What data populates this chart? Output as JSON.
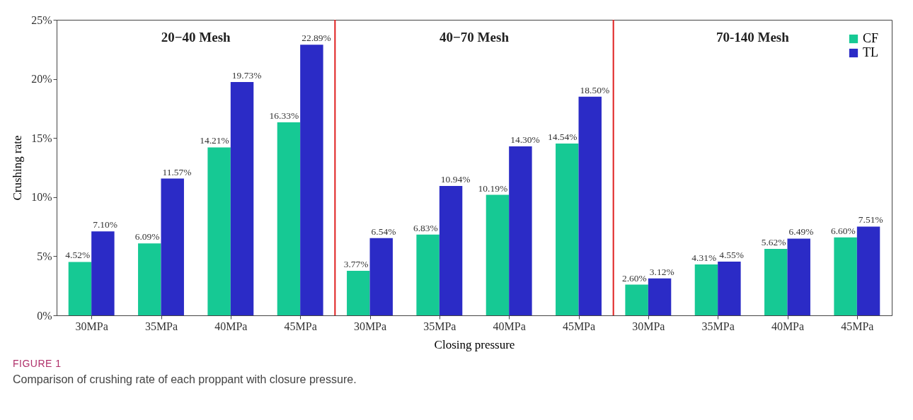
{
  "chart_data": {
    "type": "bar",
    "xlabel": "Closing pressure",
    "ylabel": "Crushing rate",
    "categories": [
      "30MPa",
      "35MPa",
      "40MPa",
      "45MPa",
      "30MPa",
      "35MPa",
      "40MPa",
      "45MPa",
      "30MPa",
      "35MPa",
      "40MPa",
      "45MPa"
    ],
    "series": [
      {
        "name": "CF",
        "color": "#16c994",
        "values": [
          4.52,
          6.09,
          14.21,
          16.33,
          3.77,
          6.83,
          10.19,
          14.54,
          2.6,
          4.31,
          5.62,
          6.6
        ],
        "value_labels": [
          "4.52%",
          "6.09%",
          "14.21%",
          "16.33%",
          "3.77%",
          "6.83%",
          "10.19%",
          "14.54%",
          "2.60%",
          "4.31%",
          "5.62%",
          "6.60%"
        ]
      },
      {
        "name": "TL",
        "color": "#2b2bc6",
        "values": [
          7.1,
          11.57,
          19.73,
          22.89,
          6.54,
          10.94,
          14.3,
          18.5,
          3.12,
          4.55,
          6.49,
          7.51
        ],
        "value_labels": [
          "7.10%",
          "11.57%",
          "19.73%",
          "22.89%",
          "6.54%",
          "10.94%",
          "14.30%",
          "18.50%",
          "3.12%",
          "4.55%",
          "6.49%",
          "7.51%"
        ]
      }
    ],
    "ylim": [
      0,
      25
    ],
    "yticks": [
      {
        "value": 0,
        "label": "0%"
      },
      {
        "value": 5,
        "label": "5%"
      },
      {
        "value": 10,
        "label": "10%"
      },
      {
        "value": 15,
        "label": "15%"
      },
      {
        "value": 20,
        "label": "20%"
      },
      {
        "value": 25,
        "label": "25%"
      }
    ],
    "annotations": [
      "20−40 Mesh",
      "40−70 Mesh",
      "70-140 Mesh",
      "FIGURE 1",
      "Comparison of crushing rate of each proppant with closure pressure."
    ],
    "legend": "top right",
    "grid": false
  }
}
